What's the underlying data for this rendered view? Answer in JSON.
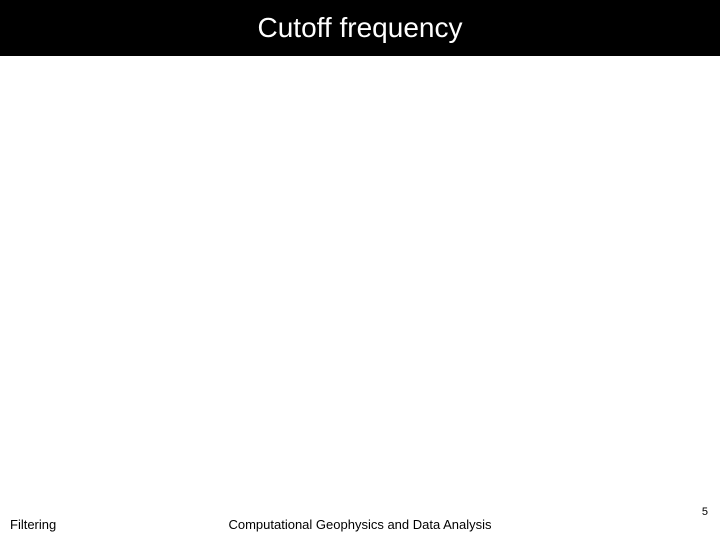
{
  "slide": {
    "title": "Cutoff frequency",
    "footer_left": "Filtering",
    "footer_center": "Computational Geophysics and Data Analysis",
    "page_number": "5",
    "colors": {
      "title_bg": "#000000",
      "title_fg": "#ffffff",
      "body_bg": "#ffffff",
      "footer_fg": "#000000"
    },
    "typography": {
      "title_fontsize": 28,
      "footer_fontsize": 13,
      "page_number_fontsize": 11
    }
  }
}
